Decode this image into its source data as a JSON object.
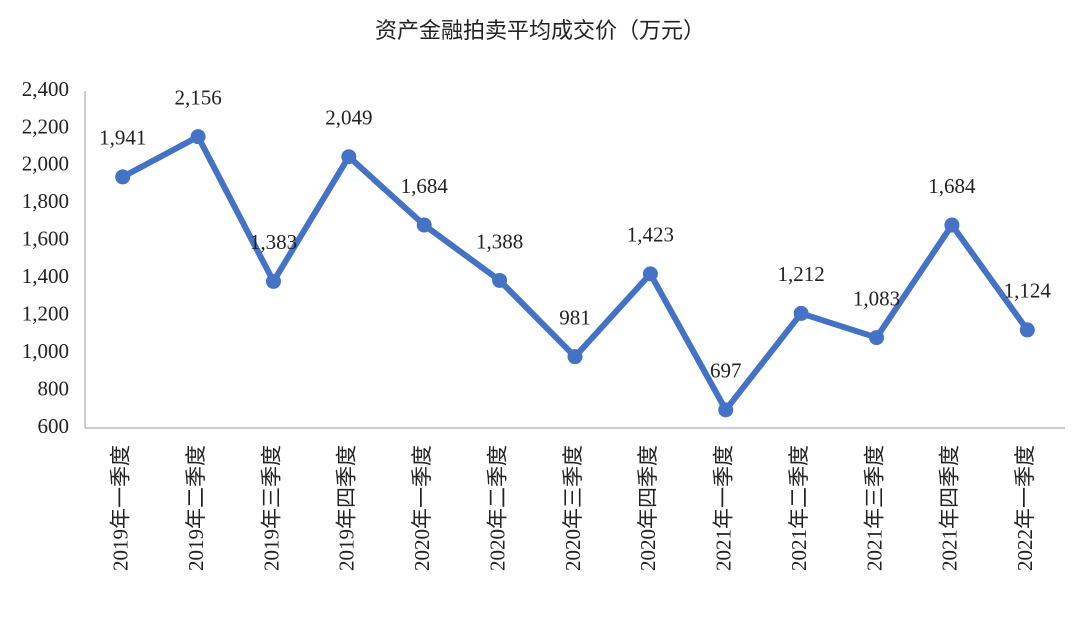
{
  "chart_data": {
    "type": "line",
    "title": "资产金融拍卖平均成交价（万元）",
    "categories": [
      "2019年一季度",
      "2019年二季度",
      "2019年三季度",
      "2019年四季度",
      "2020年一季度",
      "2020年二季度",
      "2020年三季度",
      "2020年四季度",
      "2021年一季度",
      "2021年二季度",
      "2021年三季度",
      "2021年四季度",
      "2022年一季度"
    ],
    "values": [
      1941,
      2156,
      1383,
      2049,
      1684,
      1388,
      981,
      1423,
      697,
      1212,
      1083,
      1684,
      1124
    ],
    "value_labels": [
      "1,941",
      "2,156",
      "1,383",
      "2,049",
      "1,684",
      "1,388",
      "981",
      "1,423",
      "697",
      "1,212",
      "1,083",
      "1,684",
      "1,124"
    ],
    "color": "#4472c4",
    "ylim": [
      600,
      2400
    ],
    "yticks": [
      600,
      800,
      {
        "value": 1000,
        "label": "1,000"
      },
      {
        "value": 1200,
        "label": "1,200"
      },
      {
        "value": 1400,
        "label": "1,400"
      },
      {
        "value": 1600,
        "label": "1,600"
      },
      {
        "value": 1800,
        "label": "1,800"
      },
      {
        "value": 2000,
        "label": "2,000"
      },
      {
        "value": 2200,
        "label": "2,200"
      },
      {
        "value": 2400,
        "label": "2,400"
      }
    ],
    "grid": false
  }
}
